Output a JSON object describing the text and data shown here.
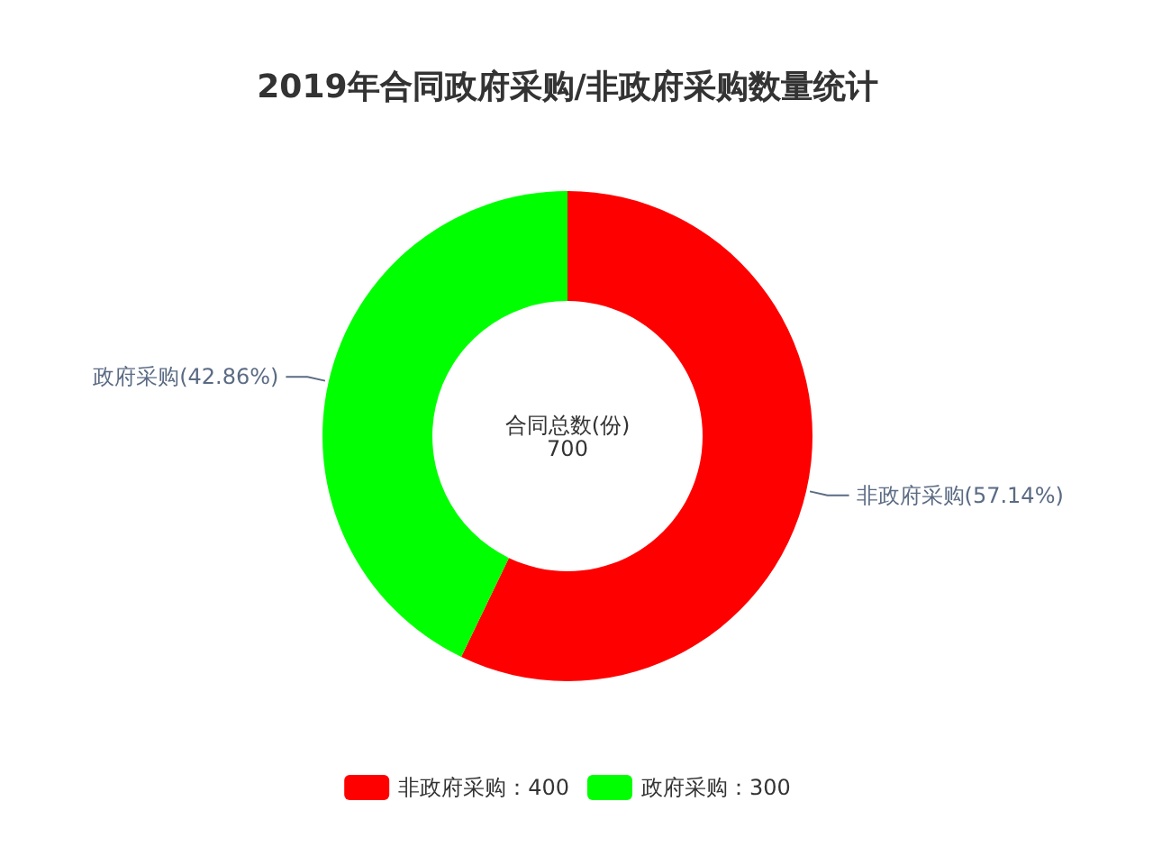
{
  "chart_data": {
    "type": "donut",
    "title": "2019年合同政府采购/非政府采购数量统计",
    "categories": [
      "非政府采购：400",
      "政府采购：300"
    ],
    "values": [
      57.14,
      42.86
    ],
    "colors": [
      "#ff0000",
      "#00ff00"
    ],
    "value_labels": [
      "非政府采购(57.14%)",
      "政府采购(42.86%)"
    ],
    "annotations": [
      "合同总数(份)",
      "700"
    ],
    "legend": "bottom"
  }
}
